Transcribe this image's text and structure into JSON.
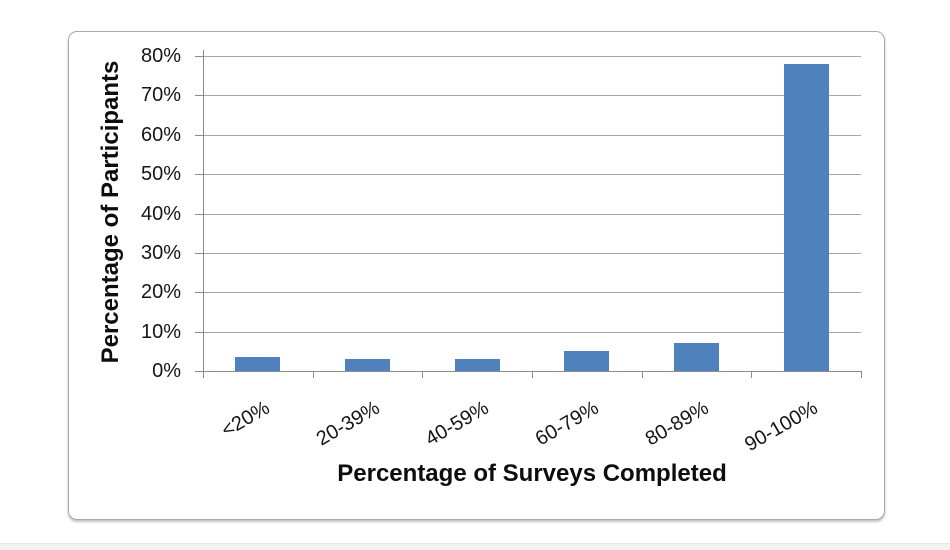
{
  "chart_data": {
    "type": "bar",
    "title": "",
    "categories": [
      "<20%",
      "20-39%",
      "40-59%",
      "60-79%",
      "80-89%",
      "90-100%"
    ],
    "values": [
      3.5,
      3,
      3,
      5,
      7,
      78
    ],
    "xlabel": "Percentage of Surveys Completed",
    "ylabel": "Percentage of Participants",
    "ylim": [
      0,
      80
    ],
    "ytick_step": 10,
    "ytick_labels": [
      "0%",
      "10%",
      "20%",
      "30%",
      "40%",
      "50%",
      "60%",
      "70%",
      "80%"
    ],
    "x_label_rotation_deg": -30,
    "legend": "none",
    "gridlines": true,
    "colors": {
      "bar": "#4F81BD",
      "gridline": "#A6A6A6",
      "axis": "#8C8C8C",
      "text": "#161616",
      "frame_border": "#A9A9A9",
      "background": "#FFFFFF"
    }
  }
}
